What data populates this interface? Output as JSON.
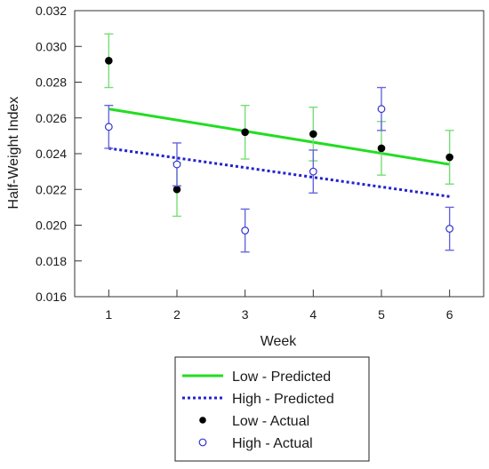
{
  "chart_data": {
    "type": "scatter",
    "title": "",
    "xlabel": "Week",
    "ylabel": "Half-Weight Index",
    "xlim": [
      0.5,
      6.5
    ],
    "ylim": [
      0.016,
      0.032
    ],
    "x_ticks": [
      "1",
      "2",
      "3",
      "4",
      "5",
      "6"
    ],
    "y_ticks": [
      "0.016",
      "0.018",
      "0.020",
      "0.022",
      "0.024",
      "0.026",
      "0.028",
      "0.030",
      "0.032"
    ],
    "grid": false,
    "legend_position": "bottom",
    "series": [
      {
        "name": "Low - Predicted",
        "kind": "line",
        "style": "solid",
        "color": "#22dd22",
        "x": [
          1,
          6
        ],
        "y": [
          0.0265,
          0.0234
        ]
      },
      {
        "name": "High - Predicted",
        "kind": "line",
        "style": "dotted",
        "color": "#2222cc",
        "x": [
          1,
          6
        ],
        "y": [
          0.0243,
          0.0216
        ]
      },
      {
        "name": "Low - Actual",
        "kind": "points",
        "marker": "filled",
        "color": "#000000",
        "error_color": "#77dd77",
        "x": [
          1,
          2,
          3,
          4,
          5,
          6
        ],
        "y": [
          0.0292,
          0.022,
          0.0252,
          0.0251,
          0.0243,
          0.0238
        ],
        "y_err": [
          0.0015,
          0.0015,
          0.0015,
          0.0015,
          0.0015,
          0.0015
        ]
      },
      {
        "name": "High - Actual",
        "kind": "points",
        "marker": "open",
        "color": "#3333cc",
        "error_color": "#6666dd",
        "x": [
          1,
          2,
          3,
          4,
          5,
          6
        ],
        "y": [
          0.0255,
          0.0234,
          0.0197,
          0.023,
          0.0265,
          0.0198
        ],
        "y_err": [
          0.0012,
          0.0012,
          0.0012,
          0.0012,
          0.0012,
          0.0012
        ]
      }
    ]
  }
}
